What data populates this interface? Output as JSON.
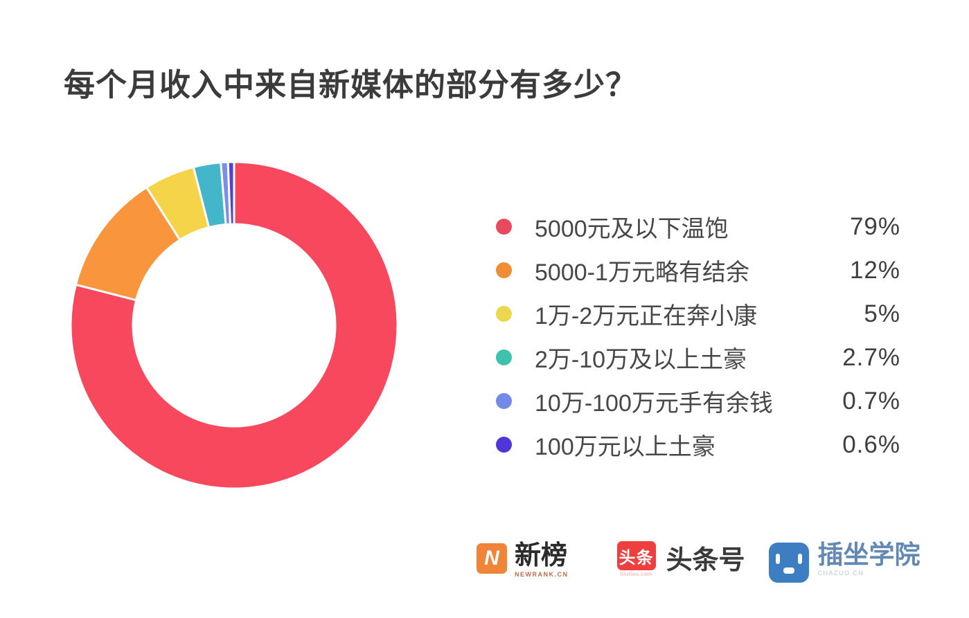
{
  "page": {
    "background": "#ffffff"
  },
  "title": "每个月收入中来自新媒体的部分有多少？",
  "chart_data": {
    "type": "pie",
    "subtype": "donut",
    "title": "每个月收入中来自新媒体的部分有多少？",
    "categories": [
      "5000元及以下温饱",
      "5000-1万元略有结余",
      "1万-2万元正在奔小康",
      "2万-10万及以上土豪",
      "10万-100万元手有余钱",
      "100万元以上土豪"
    ],
    "values": [
      79,
      12,
      5,
      2.7,
      0.7,
      0.6
    ],
    "value_labels": [
      "79%",
      "12%",
      "5%",
      "2.7%",
      "0.7%",
      "0.6%"
    ],
    "colors": [
      "#F8485E",
      "#F9953C",
      "#F6D44A",
      "#44B6C9",
      "#7A8EE8",
      "#5642CE"
    ],
    "start_angle_deg": 0,
    "direction": "clockwise",
    "inner_radius_ratio": 0.62,
    "slice_gap_stroke": "#ffffff",
    "legend_position": "right"
  },
  "legend": {
    "items": [
      {
        "label": "5000元及以下温饱",
        "pct": "79%",
        "dot_style": "background:#E74A5F"
      },
      {
        "label": "5000-1万元略有结余",
        "pct": "12%",
        "dot_style": "background:#EE8D35"
      },
      {
        "label": "1万-2万元正在奔小康",
        "pct": "5%",
        "dot_style": "background:#ECD850"
      },
      {
        "label": "2万-10万及以上土豪",
        "pct": "2.7%",
        "dot_style": "background:#3EC1AD"
      },
      {
        "label": "10万-100万元手有余钱",
        "pct": "0.7%",
        "dot_style": "background:#7289E8"
      },
      {
        "label": "100万元以上土豪",
        "pct": "0.6%",
        "dot_style": "background:#5036D6"
      }
    ]
  },
  "footer": {
    "newrank": {
      "icon_letter": "N",
      "name": "新榜",
      "sub": "NEWRANK.CN"
    },
    "toutiao": {
      "icon_text": "头条",
      "icon_sub": "toutiao.com",
      "name": "头条号"
    },
    "chazuo": {
      "name": "插坐学院",
      "sub": "CHAZUO.CN"
    }
  }
}
